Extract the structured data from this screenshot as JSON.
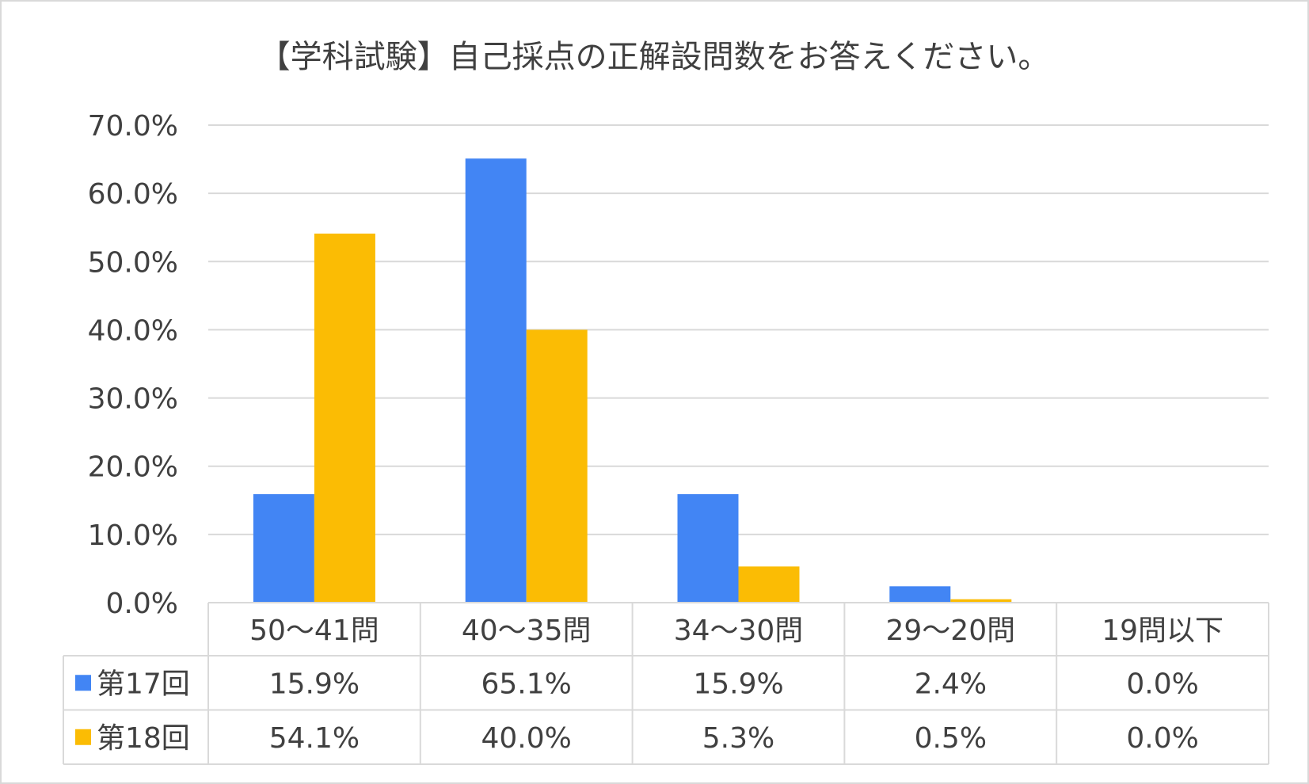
{
  "chart_data": {
    "type": "bar",
    "title": "【学科試験】自己採点の正解設問数をお答えください。",
    "categories": [
      "50～41問",
      "40～35問",
      "34～30問",
      "29～20問",
      "19問以下"
    ],
    "series": [
      {
        "name": "第17回",
        "values": [
          15.9,
          65.1,
          15.9,
          2.4,
          0.0
        ],
        "labels": [
          "15.9%",
          "65.1%",
          "15.9%",
          "2.4%",
          "0.0%"
        ],
        "color": "#4285f4"
      },
      {
        "name": "第18回",
        "values": [
          54.1,
          40.0,
          5.3,
          0.5,
          0.0
        ],
        "labels": [
          "54.1%",
          "40.0%",
          "5.3%",
          "0.5%",
          "0.0%"
        ],
        "color": "#fbbc04"
      }
    ],
    "ylim": [
      0,
      70
    ],
    "yticks": [
      "0.0%",
      "10.0%",
      "20.0%",
      "30.0%",
      "40.0%",
      "50.0%",
      "60.0%",
      "70.0%"
    ],
    "grid": true,
    "legend": "data-table",
    "colors": {
      "grid": "#d9d9d9",
      "text": "#404040",
      "border": "#d9d9d9"
    }
  }
}
